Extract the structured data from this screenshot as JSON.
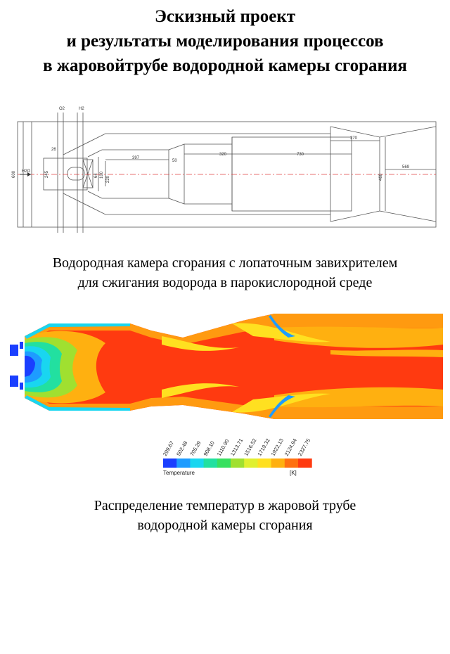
{
  "title": {
    "line1": "Эскизный проект",
    "line2": "и результаты моделирования процессов",
    "line3": "в жаровойтрубе водородной камеры сгорания"
  },
  "drawing": {
    "labels": {
      "o2": "O2",
      "h2": "H2",
      "h2o": "H2O",
      "d600": "600",
      "d245": "245",
      "d26": "26",
      "d64": "64",
      "d100": "100",
      "d220": "220",
      "d397": "397",
      "d50": "50",
      "d320": "320",
      "d730": "730",
      "d270": "270",
      "d460": "460",
      "d569": "569"
    }
  },
  "caption1": {
    "line1": "Водородная камера сгорания с лопаточным завихрителем",
    "line2": "для сжигания водорода в парокислородной среде"
  },
  "legend": {
    "title": "Temperature",
    "unit": "[K]",
    "ticks": [
      "299.67",
      "502.48",
      "705.29",
      "908.10",
      "1110.90",
      "1313.71",
      "1516.52",
      "1719.32",
      "1922.13",
      "2124.94",
      "2327.75"
    ],
    "colors": [
      "#1a3fff",
      "#1e9cff",
      "#19d6f0",
      "#22e0a0",
      "#38e060",
      "#a0e030",
      "#e0f030",
      "#ffe020",
      "#ffb010",
      "#ff7010",
      "#ff3a10"
    ]
  },
  "caption2": {
    "line1": "Распределение температур в жаровой трубе",
    "line2": "водородной камеры сгорания"
  }
}
